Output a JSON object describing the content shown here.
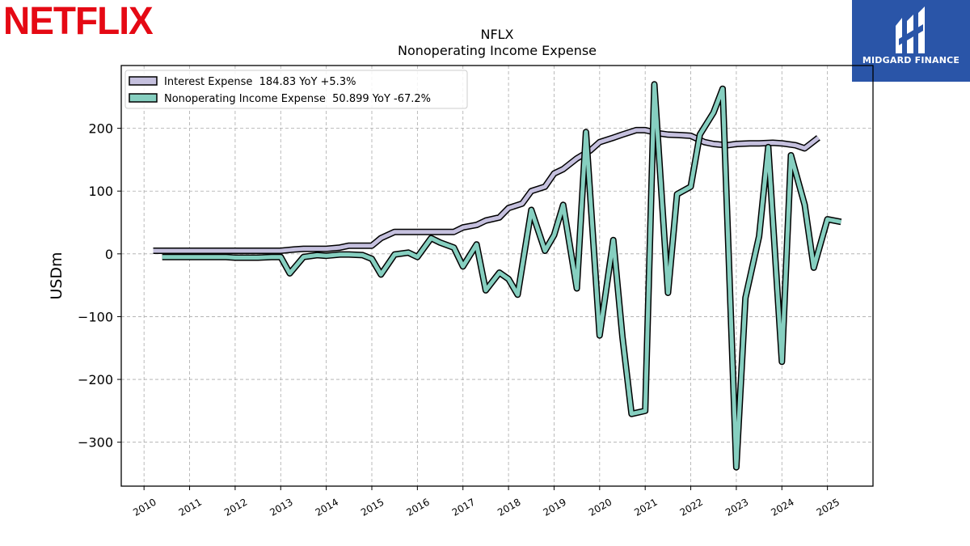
{
  "logo": {
    "text": "NETFLIX"
  },
  "brand": {
    "name": "MIDGARD FINANCE"
  },
  "chart_data": {
    "type": "line",
    "title": "NFLX",
    "subtitle": "Nonoperating Income Expense",
    "xlabel": "",
    "ylabel": "USDm",
    "xlim": [
      2009.5,
      2026.0
    ],
    "ylim": [
      -370,
      300
    ],
    "yticks": [
      -300,
      -200,
      -100,
      0,
      100,
      200
    ],
    "xticks": [
      "2010",
      "2011",
      "2012",
      "2013",
      "2014",
      "2015",
      "2016",
      "2017",
      "2018",
      "2019",
      "2020",
      "2021",
      "2022",
      "2023",
      "2024",
      "2025"
    ],
    "grid": true,
    "legend_position": "top-left",
    "series": [
      {
        "name": "Interest Expense",
        "legend_label": "Interest Expense  184.83 YoY +5.3%",
        "color": "#c5c0de",
        "points": [
          [
            2010.2,
            5
          ],
          [
            2010.5,
            5
          ],
          [
            2010.8,
            5
          ],
          [
            2011.0,
            5
          ],
          [
            2011.3,
            5
          ],
          [
            2011.5,
            5
          ],
          [
            2011.8,
            5
          ],
          [
            2012.0,
            5
          ],
          [
            2012.3,
            5
          ],
          [
            2012.5,
            5
          ],
          [
            2012.8,
            5
          ],
          [
            2013.0,
            5
          ],
          [
            2013.3,
            7
          ],
          [
            2013.5,
            8
          ],
          [
            2013.8,
            8
          ],
          [
            2014.0,
            8
          ],
          [
            2014.3,
            10
          ],
          [
            2014.5,
            13
          ],
          [
            2014.8,
            13
          ],
          [
            2015.0,
            13
          ],
          [
            2015.2,
            25
          ],
          [
            2015.5,
            35
          ],
          [
            2015.8,
            35
          ],
          [
            2016.0,
            35
          ],
          [
            2016.3,
            35
          ],
          [
            2016.5,
            35
          ],
          [
            2016.8,
            35
          ],
          [
            2017.0,
            42
          ],
          [
            2017.3,
            46
          ],
          [
            2017.5,
            53
          ],
          [
            2017.8,
            58
          ],
          [
            2018.0,
            73
          ],
          [
            2018.3,
            80
          ],
          [
            2018.5,
            100
          ],
          [
            2018.8,
            107
          ],
          [
            2019.0,
            128
          ],
          [
            2019.2,
            135
          ],
          [
            2019.5,
            152
          ],
          [
            2019.8,
            165
          ],
          [
            2020.0,
            178
          ],
          [
            2020.3,
            185
          ],
          [
            2020.5,
            190
          ],
          [
            2020.8,
            197
          ],
          [
            2021.0,
            197
          ],
          [
            2021.3,
            192
          ],
          [
            2021.5,
            190
          ],
          [
            2021.8,
            189
          ],
          [
            2022.0,
            188
          ],
          [
            2022.3,
            178
          ],
          [
            2022.5,
            175
          ],
          [
            2022.8,
            173
          ],
          [
            2023.0,
            175
          ],
          [
            2023.3,
            176
          ],
          [
            2023.5,
            176
          ],
          [
            2023.8,
            177
          ],
          [
            2024.0,
            176
          ],
          [
            2024.3,
            173
          ],
          [
            2024.5,
            168
          ],
          [
            2024.8,
            185
          ]
        ]
      },
      {
        "name": "Nonoperating Income Expense",
        "legend_label": "Nonoperating Income Expense  50.899 YoY -67.2%",
        "color": "#86cfc0",
        "points": [
          [
            2010.4,
            -5
          ],
          [
            2010.7,
            -5
          ],
          [
            2011.0,
            -5
          ],
          [
            2011.3,
            -5
          ],
          [
            2011.5,
            -5
          ],
          [
            2011.8,
            -5
          ],
          [
            2012.0,
            -6
          ],
          [
            2012.3,
            -6
          ],
          [
            2012.5,
            -6
          ],
          [
            2012.8,
            -5
          ],
          [
            2013.0,
            -5
          ],
          [
            2013.2,
            -31
          ],
          [
            2013.5,
            -5
          ],
          [
            2013.8,
            -2
          ],
          [
            2014.0,
            -3
          ],
          [
            2014.3,
            -1
          ],
          [
            2014.5,
            -1
          ],
          [
            2014.8,
            -2
          ],
          [
            2015.0,
            -8
          ],
          [
            2015.2,
            -33
          ],
          [
            2015.5,
            -1
          ],
          [
            2015.8,
            2
          ],
          [
            2016.0,
            -5
          ],
          [
            2016.3,
            25
          ],
          [
            2016.5,
            18
          ],
          [
            2016.8,
            10
          ],
          [
            2017.0,
            -20
          ],
          [
            2017.3,
            15
          ],
          [
            2017.5,
            -58
          ],
          [
            2017.8,
            -30
          ],
          [
            2018.0,
            -40
          ],
          [
            2018.2,
            -65
          ],
          [
            2018.5,
            70
          ],
          [
            2018.8,
            5
          ],
          [
            2019.0,
            30
          ],
          [
            2019.2,
            78
          ],
          [
            2019.5,
            -55
          ],
          [
            2019.7,
            194
          ],
          [
            2020.0,
            -130
          ],
          [
            2020.3,
            22
          ],
          [
            2020.5,
            -132
          ],
          [
            2020.7,
            -255
          ],
          [
            2021.0,
            -250
          ],
          [
            2021.2,
            270
          ],
          [
            2021.5,
            -62
          ],
          [
            2021.7,
            95
          ],
          [
            2022.0,
            107
          ],
          [
            2022.2,
            190
          ],
          [
            2022.5,
            225
          ],
          [
            2022.7,
            263
          ],
          [
            2023.0,
            -340
          ],
          [
            2023.2,
            -70
          ],
          [
            2023.5,
            28
          ],
          [
            2023.7,
            170
          ],
          [
            2024.0,
            -172
          ],
          [
            2024.2,
            157
          ],
          [
            2024.5,
            78
          ],
          [
            2024.7,
            -22
          ],
          [
            2025.0,
            55
          ],
          [
            2025.3,
            51
          ]
        ]
      }
    ]
  }
}
